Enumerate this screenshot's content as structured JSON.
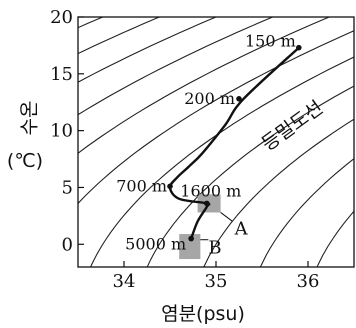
{
  "chart_data": {
    "type": "line",
    "xlabel": "염분(psu)",
    "ylabel_main": "수온",
    "ylabel_unit": "(℃)",
    "xlim": [
      33.5,
      36.5
    ],
    "ylim": [
      -2,
      20
    ],
    "xticks": [
      34,
      35,
      36
    ],
    "yticks": [
      0,
      5,
      10,
      15,
      20
    ],
    "isopycnal_label": "등밀도선",
    "series": [
      {
        "x": [
          35.9,
          35.3,
          35.1,
          34.85,
          34.7,
          34.58,
          34.5,
          34.6,
          34.9,
          34.9,
          34.8,
          34.73
        ],
        "y": [
          17.3,
          12.8,
          10.5,
          8.0,
          6.8,
          5.9,
          5.0,
          4.0,
          3.6,
          3.3,
          2.0,
          0.5
        ]
      }
    ],
    "depth_points": [
      {
        "label": "150 m",
        "x": 35.9,
        "y": 17.3
      },
      {
        "label": "200 m",
        "x": 35.25,
        "y": 12.8
      },
      {
        "label": "700 m",
        "x": 34.5,
        "y": 5.1
      },
      {
        "label": "1600 m",
        "x": 34.9,
        "y": 3.6
      },
      {
        "label": "5000 m",
        "x": 34.73,
        "y": 0.5
      }
    ],
    "regions": [
      {
        "label": "A",
        "x": [
          34.8,
          35.05
        ],
        "y": [
          2.8,
          4.4
        ]
      },
      {
        "label": "B",
        "x": [
          34.6,
          34.83
        ],
        "y": [
          -1.3,
          0.9
        ]
      }
    ]
  }
}
